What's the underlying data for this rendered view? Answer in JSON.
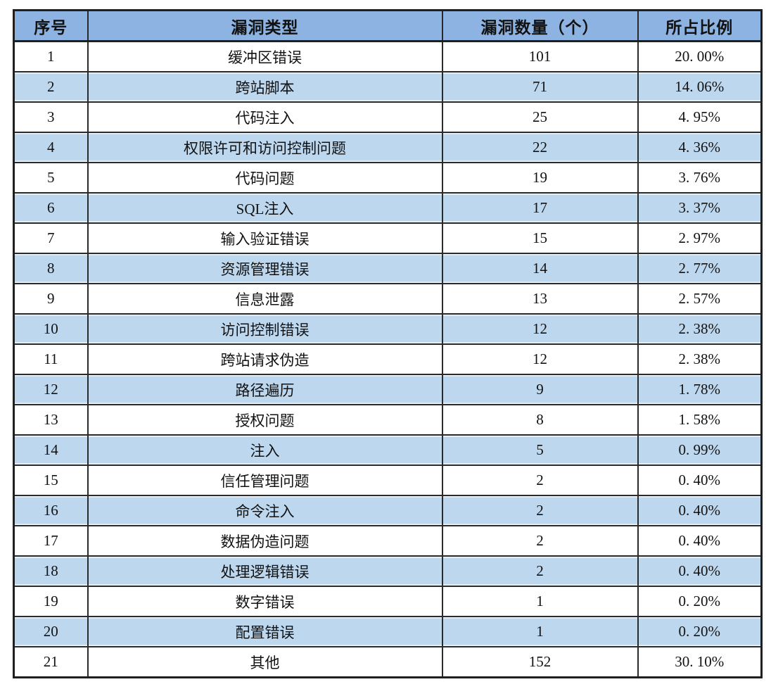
{
  "table": {
    "columns": [
      "序号",
      "漏洞类型",
      "漏洞数量（个）",
      "所占比例"
    ],
    "rows": [
      {
        "no": "1",
        "type": "缓冲区错误",
        "count": "101",
        "pct": "20. 00%"
      },
      {
        "no": "2",
        "type": "跨站脚本",
        "count": "71",
        "pct": "14. 06%"
      },
      {
        "no": "3",
        "type": "代码注入",
        "count": "25",
        "pct": "4. 95%"
      },
      {
        "no": "4",
        "type": "权限许可和访问控制问题",
        "count": "22",
        "pct": "4. 36%"
      },
      {
        "no": "5",
        "type": "代码问题",
        "count": "19",
        "pct": "3. 76%"
      },
      {
        "no": "6",
        "type": "SQL注入",
        "count": "17",
        "pct": "3. 37%"
      },
      {
        "no": "7",
        "type": "输入验证错误",
        "count": "15",
        "pct": "2. 97%"
      },
      {
        "no": "8",
        "type": "资源管理错误",
        "count": "14",
        "pct": "2. 77%"
      },
      {
        "no": "9",
        "type": "信息泄露",
        "count": "13",
        "pct": "2. 57%"
      },
      {
        "no": "10",
        "type": "访问控制错误",
        "count": "12",
        "pct": "2. 38%"
      },
      {
        "no": "11",
        "type": "跨站请求伪造",
        "count": "12",
        "pct": "2. 38%"
      },
      {
        "no": "12",
        "type": "路径遍历",
        "count": "9",
        "pct": "1. 78%"
      },
      {
        "no": "13",
        "type": "授权问题",
        "count": "8",
        "pct": "1. 58%"
      },
      {
        "no": "14",
        "type": "注入",
        "count": "5",
        "pct": "0. 99%"
      },
      {
        "no": "15",
        "type": "信任管理问题",
        "count": "2",
        "pct": "0. 40%"
      },
      {
        "no": "16",
        "type": "命令注入",
        "count": "2",
        "pct": "0. 40%"
      },
      {
        "no": "17",
        "type": "数据伪造问题",
        "count": "2",
        "pct": "0. 40%"
      },
      {
        "no": "18",
        "type": "处理逻辑错误",
        "count": "2",
        "pct": "0. 40%"
      },
      {
        "no": "19",
        "type": "数字错误",
        "count": "1",
        "pct": "0. 20%"
      },
      {
        "no": "20",
        "type": "配置错误",
        "count": "1",
        "pct": "0. 20%"
      },
      {
        "no": "21",
        "type": "其他",
        "count": "152",
        "pct": "30. 10%"
      }
    ]
  },
  "colors": {
    "header_bg": "#8DB3E2",
    "alt_row_bg": "#BDD7EE",
    "row_bg": "#FFFFFF",
    "border": "#2A2A2A",
    "text": "#121212"
  }
}
